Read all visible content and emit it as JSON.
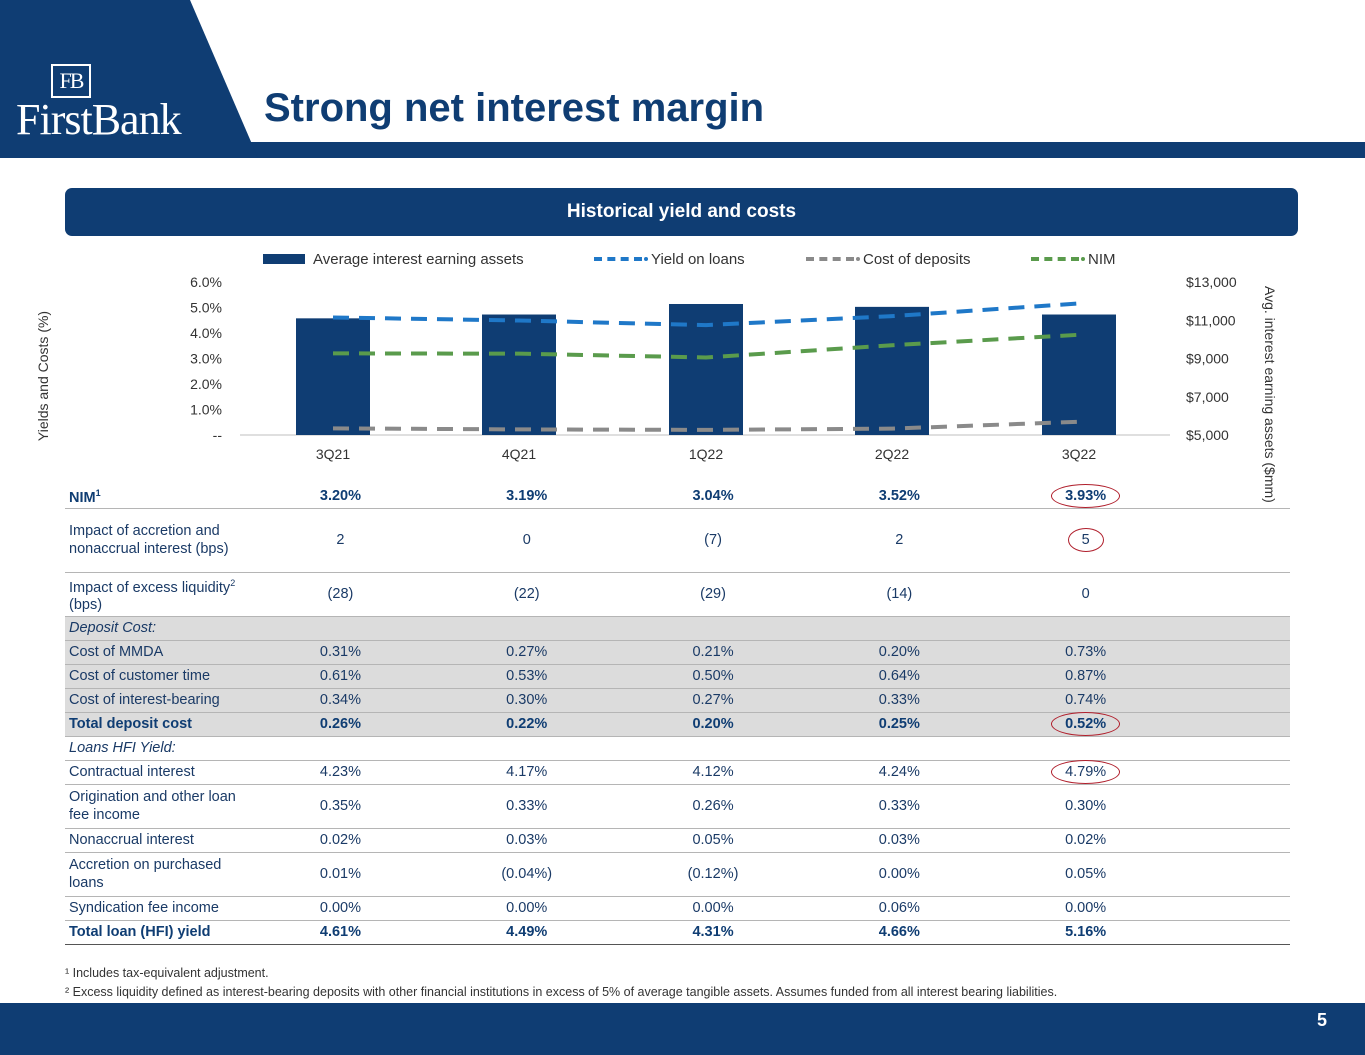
{
  "header": {
    "logo_mark": "FB",
    "logo_text": "FirstBank",
    "title": "Strong net interest margin",
    "colors": {
      "navy": "#0f3d73",
      "dark_navy": "#0a2f5c"
    }
  },
  "section_title": "Historical yield and costs",
  "chart_data": {
    "type": "bar",
    "categories": [
      "3Q21",
      "4Q21",
      "1Q22",
      "2Q22",
      "3Q22"
    ],
    "legend": [
      "Average interest earning assets",
      "Yield on loans",
      "Cost of deposits",
      "NIM"
    ],
    "bar_series": {
      "name": "Average interest earning assets",
      "values": [
        11100,
        11300,
        11850,
        11700,
        11300
      ],
      "color": "#0f3d73"
    },
    "line_series": [
      {
        "name": "Yield on loans",
        "values": [
          4.61,
          4.49,
          4.31,
          4.66,
          5.16
        ],
        "color": "#1f78c8"
      },
      {
        "name": "Cost of deposits",
        "values": [
          0.26,
          0.22,
          0.2,
          0.25,
          0.52
        ],
        "color": "#8a8a8a"
      },
      {
        "name": "NIM",
        "values": [
          3.2,
          3.19,
          3.04,
          3.52,
          3.93
        ],
        "color": "#5a9b4c"
      }
    ],
    "ylabel_left": "Yields and Costs (%)",
    "ylabel_right": "Avg. interest earning assets ($mm)",
    "ylim_left": [
      0,
      6
    ],
    "ylim_right": [
      5000,
      13000
    ],
    "yticks_left": [
      "--",
      "1.0%",
      "2.0%",
      "3.0%",
      "4.0%",
      "5.0%",
      "6.0%"
    ],
    "yticks_right": [
      "$5,000",
      "$7,000",
      "$9,000",
      "$11,000",
      "$13,000"
    ]
  },
  "table": {
    "rows": [
      {
        "label": "NIM",
        "sup": "1",
        "values": [
          "3.20%",
          "3.19%",
          "3.04%",
          "3.52%",
          "3.93%"
        ],
        "style": "bold",
        "circled": true
      },
      {
        "label": "Impact of accretion and nonaccrual interest (bps)",
        "values": [
          "2",
          "0",
          "(7)",
          "2",
          "5"
        ],
        "style": "tall",
        "circled": true
      },
      {
        "label": "Impact of excess liquidity",
        "sup": "2",
        "label_suffix": " (bps)",
        "values": [
          "(28)",
          "(22)",
          "(29)",
          "(14)",
          "0"
        ],
        "style": "mid"
      },
      {
        "label": "Deposit Cost:",
        "values": [],
        "style": "subhead"
      },
      {
        "label": "Cost of MMDA",
        "values": [
          "0.31%",
          "0.27%",
          "0.21%",
          "0.20%",
          "0.73%"
        ],
        "style": "grey"
      },
      {
        "label": "Cost of customer time",
        "values": [
          "0.61%",
          "0.53%",
          "0.50%",
          "0.64%",
          "0.87%"
        ],
        "style": "grey"
      },
      {
        "label": "Cost of interest-bearing",
        "values": [
          "0.34%",
          "0.30%",
          "0.27%",
          "0.33%",
          "0.74%"
        ],
        "style": "grey"
      },
      {
        "label": "Total deposit cost",
        "values": [
          "0.26%",
          "0.22%",
          "0.20%",
          "0.25%",
          "0.52%"
        ],
        "style": "grey-bold",
        "circled": true
      },
      {
        "label": "Loans HFI Yield:",
        "values": [],
        "style": "subhead2"
      },
      {
        "label": "Contractual interest",
        "values": [
          "4.23%",
          "4.17%",
          "4.12%",
          "4.24%",
          "4.79%"
        ],
        "style": "normal",
        "circled": true
      },
      {
        "label": "Origination and other loan fee income",
        "values": [
          "0.35%",
          "0.33%",
          "0.26%",
          "0.33%",
          "0.30%"
        ],
        "style": "mid"
      },
      {
        "label": "Nonaccrual interest",
        "values": [
          "0.02%",
          "0.03%",
          "0.05%",
          "0.03%",
          "0.02%"
        ],
        "style": "normal"
      },
      {
        "label": "Accretion on purchased loans",
        "values": [
          "0.01%",
          "(0.04%)",
          "(0.12%)",
          "0.00%",
          "0.05%"
        ],
        "style": "mid"
      },
      {
        "label": "Syndication fee income",
        "values": [
          "0.00%",
          "0.00%",
          "0.00%",
          "0.06%",
          "0.00%"
        ],
        "style": "normal"
      },
      {
        "label": "Total loan (HFI) yield",
        "values": [
          "4.61%",
          "4.49%",
          "4.31%",
          "4.66%",
          "5.16%"
        ],
        "style": "bold-last"
      }
    ]
  },
  "footnotes": [
    "¹ Includes tax-equivalent adjustment.",
    "² Excess liquidity defined as interest-bearing deposits with other financial institutions in excess of 5% of average tangible assets. Assumes funded from all interest bearing liabilities."
  ],
  "page_number": "5"
}
